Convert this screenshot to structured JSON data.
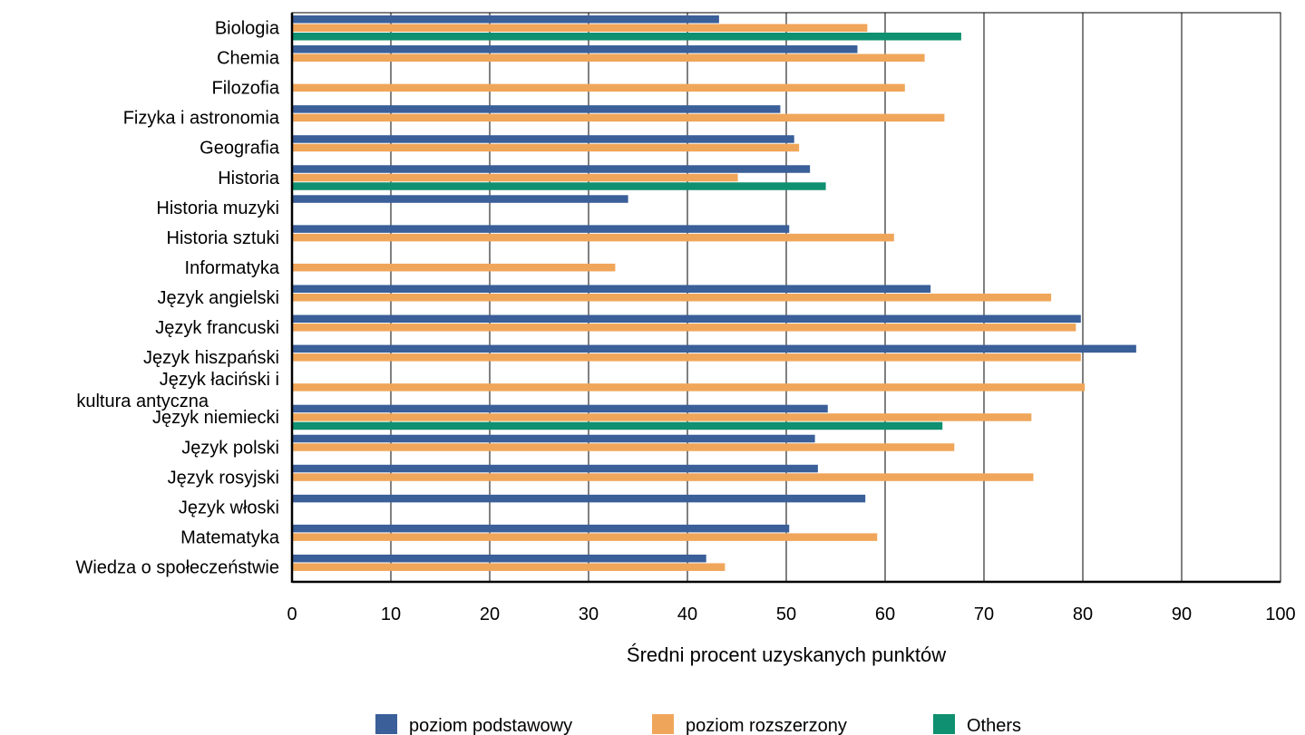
{
  "chart_data": {
    "type": "bar",
    "orientation": "horizontal",
    "categories": [
      "Biologia",
      "Chemia",
      "Filozofia",
      "Fizyka i astronomia",
      "Geografia",
      "Historia",
      "Historia muzyki",
      "Historia sztuki",
      "Informatyka",
      "Język angielski",
      "Język francuski",
      "Język hiszpański",
      "Język łaciński i kultura antyczna",
      "Język niemiecki",
      "Język polski",
      "Język rosyjski",
      "Język włoski",
      "Matematyka",
      "Wiedza o społeczeństwie"
    ],
    "series": [
      {
        "name": "poziom podstawowy",
        "color": "#3a5f99",
        "values": [
          43.2,
          57.2,
          null,
          49.4,
          50.8,
          52.4,
          34.0,
          50.3,
          null,
          64.6,
          79.8,
          85.4,
          null,
          54.2,
          52.9,
          53.2,
          58.0,
          50.3,
          41.9
        ]
      },
      {
        "name": "poziom rozszerzony",
        "color": "#f0a65a",
        "values": [
          58.2,
          64.0,
          62.0,
          66.0,
          51.3,
          45.1,
          null,
          60.9,
          32.7,
          76.8,
          79.3,
          79.8,
          80.2,
          74.8,
          67.0,
          75.0,
          null,
          59.2,
          43.8
        ]
      },
      {
        "name": "Others",
        "color": "#0f9070",
        "values": [
          67.7,
          null,
          null,
          null,
          null,
          54.0,
          null,
          null,
          null,
          null,
          null,
          null,
          null,
          65.8,
          null,
          null,
          null,
          null,
          null
        ]
      }
    ],
    "xlabel": "Średni procent uzyskanych punktów",
    "xlim": [
      0,
      100
    ],
    "xticks": [
      "0",
      "10",
      "20",
      "30",
      "40",
      "50",
      "60",
      "70",
      "80",
      "90",
      "100"
    ],
    "grid": true,
    "legend": "bottom"
  }
}
